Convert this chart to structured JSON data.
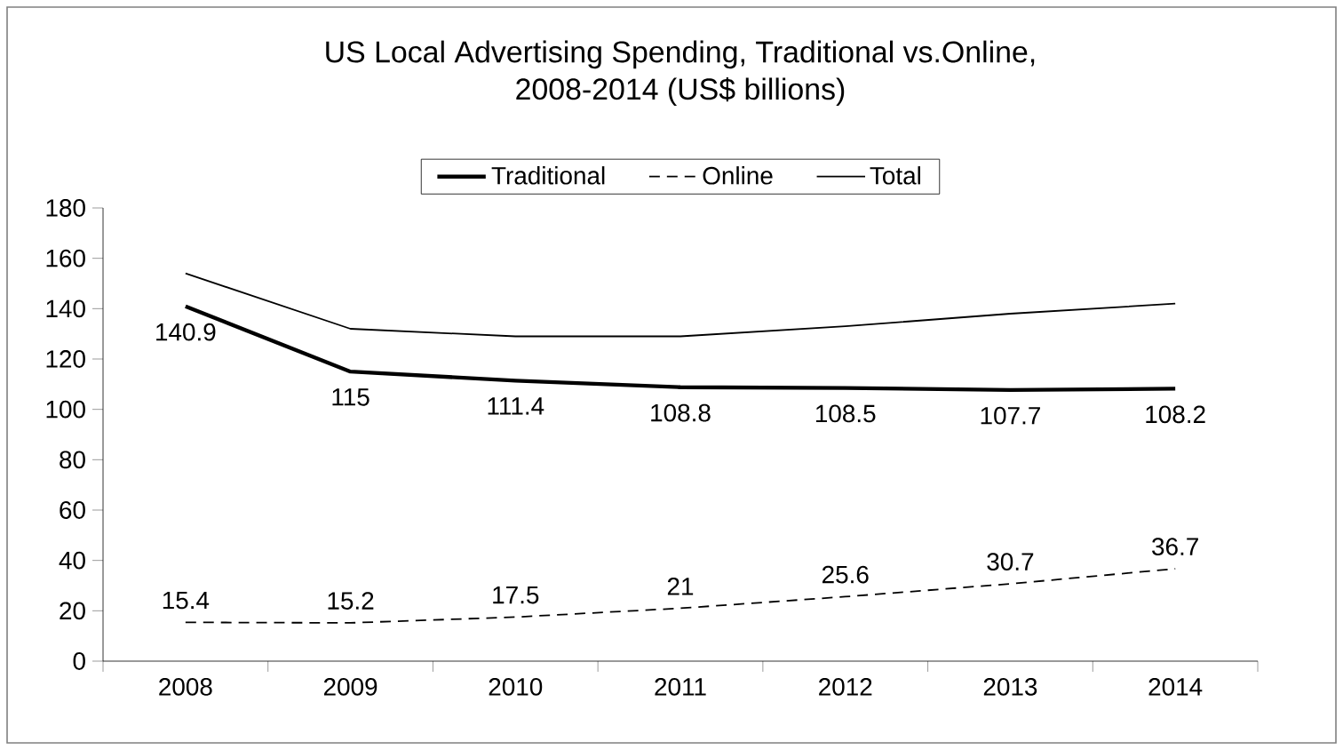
{
  "chart_data": {
    "type": "line",
    "title": "US Local Advertising Spending, Traditional vs.Online,\n2008-2014 (US$ billions)",
    "categories": [
      "2008",
      "2009",
      "2010",
      "2011",
      "2012",
      "2013",
      "2014"
    ],
    "series": [
      {
        "name": "Traditional",
        "color": "#000000",
        "line_style": "solid",
        "values": [
          140.9,
          115,
          111.4,
          108.8,
          108.5,
          107.7,
          108.2
        ],
        "value_labels": [
          "140.9",
          "115",
          "111.4",
          "108.8",
          "108.5",
          "107.7",
          "108.2"
        ]
      },
      {
        "name": "Online",
        "color": "#000000",
        "line_style": "dashed",
        "values": [
          15.4,
          15.2,
          17.5,
          21,
          25.6,
          30.7,
          36.7
        ],
        "value_labels": [
          "15.4",
          "15.2",
          "17.5",
          "21",
          "25.6",
          "30.7",
          "36.7"
        ]
      },
      {
        "name": "Total",
        "color": "#000000",
        "line_style": "solid",
        "values": [
          154,
          132,
          129,
          129,
          133,
          138,
          142
        ]
      }
    ],
    "ylim": [
      0,
      180
    ],
    "yticks": [
      0,
      20,
      40,
      60,
      80,
      100,
      120,
      140,
      160,
      180
    ],
    "grid": false,
    "legend": "top",
    "marker": "none"
  }
}
